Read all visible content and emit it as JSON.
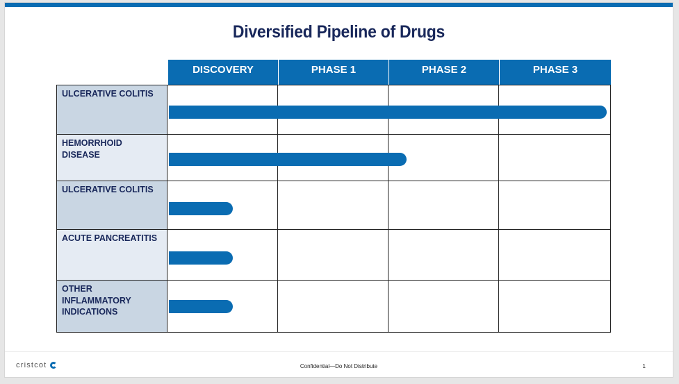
{
  "slide": {
    "title": "Diversified Pipeline of Drugs",
    "footer": {
      "logo_text": "cristcot",
      "confidential": "Confidential—Do Not Distribute",
      "page_number": "1"
    },
    "accent_color": "#0a6cb2",
    "title_color": "#18275a"
  },
  "pipeline": {
    "phases": [
      "DISCOVERY",
      "PHASE 1",
      "PHASE 2",
      "PHASE 3"
    ],
    "rows": [
      {
        "indication": "ULCERATIVE COLITIS",
        "progress_phases": 4.0
      },
      {
        "indication": "HEMORRHOID DISEASE",
        "progress_phases": 2.15
      },
      {
        "indication": "ULCERATIVE COLITIS",
        "progress_phases": 0.58
      },
      {
        "indication": "ACUTE PANCREATITIS",
        "progress_phases": 0.58
      },
      {
        "indication": "OTHER INFLAMMATORY INDICATIONS",
        "progress_phases": 0.58
      }
    ]
  }
}
